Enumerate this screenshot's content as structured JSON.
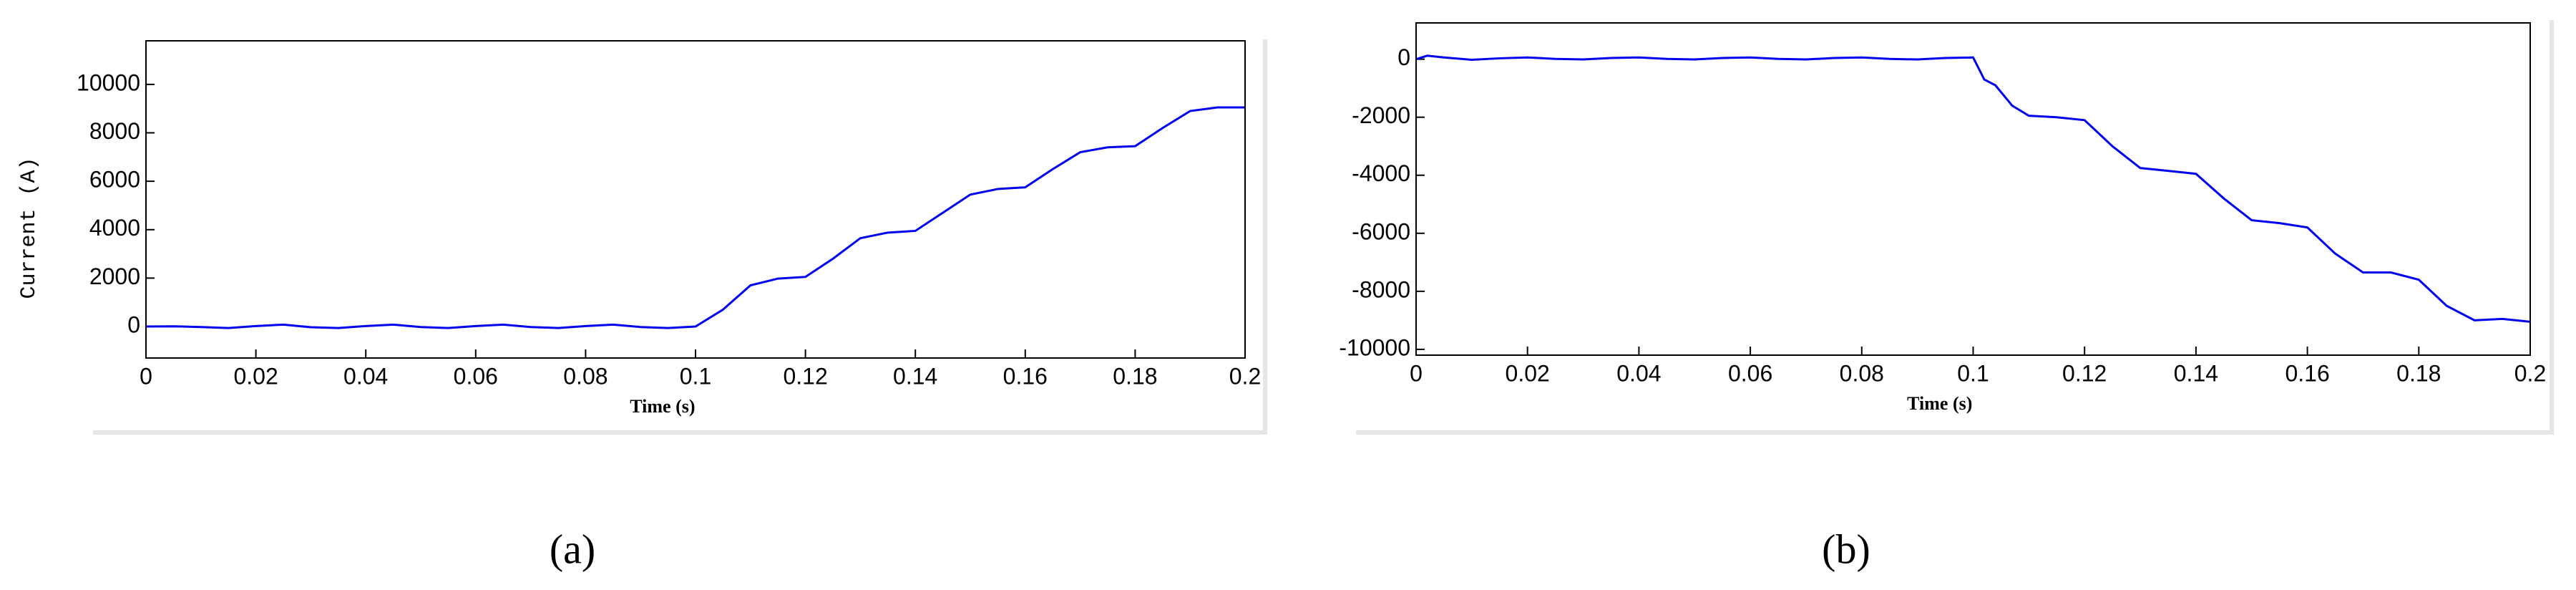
{
  "chart_data": [
    {
      "type": "line",
      "caption": "(a)",
      "xlabel": "Time (s)",
      "ylabel": "Current (A)",
      "x": [
        0,
        0.005,
        0.01,
        0.015,
        0.02,
        0.025,
        0.03,
        0.035,
        0.04,
        0.045,
        0.05,
        0.055,
        0.06,
        0.065,
        0.07,
        0.075,
        0.08,
        0.085,
        0.09,
        0.095,
        0.1,
        0.105,
        0.11,
        0.115,
        0.12,
        0.125,
        0.13,
        0.135,
        0.14,
        0.145,
        0.15,
        0.155,
        0.16,
        0.165,
        0.17,
        0.175,
        0.18,
        0.185,
        0.19,
        0.195,
        0.2
      ],
      "series": [
        {
          "color": "#0000ee",
          "values": [
            0,
            10,
            -20,
            -60,
            20,
            80,
            -30,
            -60,
            20,
            80,
            -20,
            -60,
            20,
            80,
            -20,
            -60,
            20,
            80,
            -20,
            -60,
            0,
            700,
            1700,
            1980,
            2050,
            2800,
            3650,
            3880,
            3950,
            4700,
            5450,
            5680,
            5750,
            6500,
            7200,
            7400,
            7450,
            8200,
            8900,
            9050,
            9050
          ]
        }
      ],
      "xlim": [
        0,
        0.2
      ],
      "xticks": [
        0,
        0.02,
        0.04,
        0.06,
        0.08,
        0.1,
        0.12,
        0.14,
        0.16,
        0.18,
        0.2
      ],
      "ylim": [
        -1300,
        11800
      ],
      "yticks": [
        0,
        2000,
        4000,
        6000,
        8000,
        10000
      ]
    },
    {
      "type": "line",
      "caption": "(b)",
      "xlabel": "Time (s)",
      "x": [
        0,
        0.002,
        0.005,
        0.01,
        0.015,
        0.02,
        0.025,
        0.03,
        0.035,
        0.04,
        0.045,
        0.05,
        0.055,
        0.06,
        0.065,
        0.07,
        0.075,
        0.08,
        0.085,
        0.09,
        0.095,
        0.1,
        0.102,
        0.104,
        0.107,
        0.11,
        0.115,
        0.12,
        0.125,
        0.13,
        0.135,
        0.14,
        0.145,
        0.15,
        0.155,
        0.16,
        0.165,
        0.17,
        0.175,
        0.18,
        0.185,
        0.19,
        0.195,
        0.2
      ],
      "series": [
        {
          "color": "#0000ee",
          "values": [
            0,
            120,
            60,
            -20,
            30,
            60,
            10,
            -10,
            40,
            60,
            10,
            -10,
            40,
            60,
            10,
            -10,
            40,
            60,
            10,
            -10,
            40,
            60,
            -700,
            -900,
            -1600,
            -1950,
            -2000,
            -2100,
            -3000,
            -3750,
            -3850,
            -3950,
            -4800,
            -5550,
            -5650,
            -5800,
            -6700,
            -7350,
            -7350,
            -7600,
            -8500,
            -9000,
            -8950,
            -9050
          ]
        }
      ],
      "xlim": [
        0,
        0.2
      ],
      "xticks": [
        0,
        0.02,
        0.04,
        0.06,
        0.08,
        0.1,
        0.12,
        0.14,
        0.16,
        0.18,
        0.2
      ],
      "ylim": [
        -10200,
        1250
      ],
      "yticks": [
        0,
        -2000,
        -4000,
        -6000,
        -8000,
        -10000
      ]
    }
  ]
}
